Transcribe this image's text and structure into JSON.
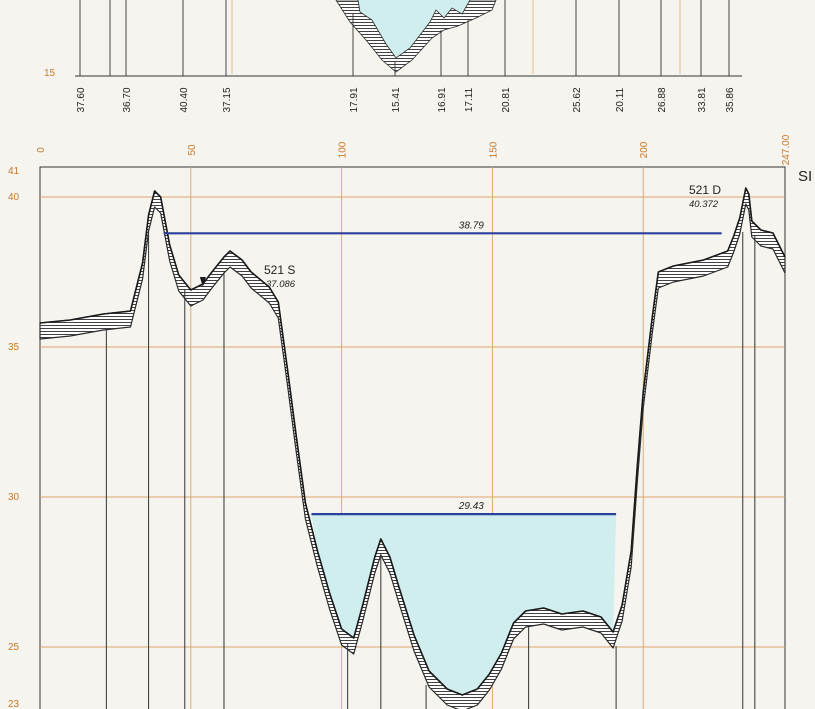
{
  "colors": {
    "paper": "#f6f4ee",
    "grid": "#d9a46a",
    "axis_text": "#c8782a",
    "water": "#cfeeed",
    "level_line": "#2a3f9e",
    "ground": "#2b2b2b"
  },
  "top_section": {
    "y_label": "15",
    "elevation_labels": [
      "37.60",
      "36.70",
      "40.40",
      "37.15",
      "17.91",
      "15.41",
      "16.91",
      "17.11",
      "20.81",
      "25.62",
      "20.11",
      "26.88",
      "33.81",
      "35.86"
    ]
  },
  "main_section": {
    "x_ticks": [
      "0",
      "50",
      "100",
      "150",
      "200",
      "247.00"
    ],
    "y_ticks": [
      "41",
      "40",
      "35",
      "30",
      "25",
      "23"
    ],
    "upper_level_label": "38.79",
    "lower_level_label": "29.43",
    "benchmark_left": {
      "name": "521 S",
      "value": "37.086"
    },
    "benchmark_right": {
      "name": "521 D",
      "value": "40.372"
    },
    "edge_text": "SI"
  },
  "chart_data": {
    "type": "cross-section",
    "xlim": [
      0,
      247
    ],
    "ylim": [
      23,
      41
    ],
    "ground_profile": [
      [
        0,
        35.8
      ],
      [
        10,
        35.9
      ],
      [
        21,
        36.1
      ],
      [
        30,
        36.2
      ],
      [
        34,
        37.8
      ],
      [
        36,
        39.4
      ],
      [
        38,
        40.2
      ],
      [
        40,
        40.0
      ],
      [
        43,
        38.4
      ],
      [
        46,
        37.4
      ],
      [
        50,
        36.9
      ],
      [
        54,
        37.1
      ],
      [
        57,
        37.5
      ],
      [
        61,
        38.0
      ],
      [
        63,
        38.2
      ],
      [
        67,
        37.9
      ],
      [
        70,
        37.5
      ],
      [
        76,
        37.0
      ],
      [
        79,
        36.5
      ],
      [
        82,
        34.3
      ],
      [
        85,
        32.0
      ],
      [
        88,
        29.8
      ],
      [
        92,
        28.2
      ],
      [
        96,
        26.8
      ],
      [
        100,
        25.6
      ],
      [
        104,
        25.3
      ],
      [
        107,
        26.4
      ],
      [
        111,
        28.0
      ],
      [
        113,
        28.6
      ],
      [
        116,
        28.0
      ],
      [
        119,
        27.0
      ],
      [
        124,
        25.4
      ],
      [
        129,
        24.2
      ],
      [
        135,
        23.6
      ],
      [
        140,
        23.4
      ],
      [
        145,
        23.6
      ],
      [
        149,
        24.1
      ],
      [
        153,
        24.8
      ],
      [
        157,
        25.8
      ],
      [
        161,
        26.2
      ],
      [
        167,
        26.3
      ],
      [
        173,
        26.1
      ],
      [
        180,
        26.2
      ],
      [
        186,
        26.0
      ],
      [
        190,
        25.5
      ],
      [
        193,
        26.4
      ],
      [
        196,
        28.2
      ],
      [
        198,
        31.0
      ],
      [
        200,
        33.5
      ],
      [
        203,
        36.0
      ],
      [
        205,
        37.5
      ],
      [
        210,
        37.7
      ],
      [
        220,
        37.9
      ],
      [
        228,
        38.2
      ],
      [
        230,
        38.7
      ],
      [
        232,
        39.3
      ],
      [
        234,
        40.3
      ],
      [
        235,
        40.1
      ],
      [
        236,
        39.2
      ],
      [
        239,
        38.9
      ],
      [
        243,
        38.8
      ],
      [
        247,
        38.0
      ]
    ],
    "water_level": {
      "elevation": 29.43,
      "x_from": 90,
      "x_to": 191
    },
    "upper_level": {
      "elevation": 38.79,
      "x_from": 41,
      "x_to": 226
    },
    "benchmarks": [
      {
        "name": "521 S",
        "elevation": 37.086,
        "x": 54
      },
      {
        "name": "521 D",
        "elevation": 40.372,
        "x": 234
      }
    ],
    "grid": true
  }
}
